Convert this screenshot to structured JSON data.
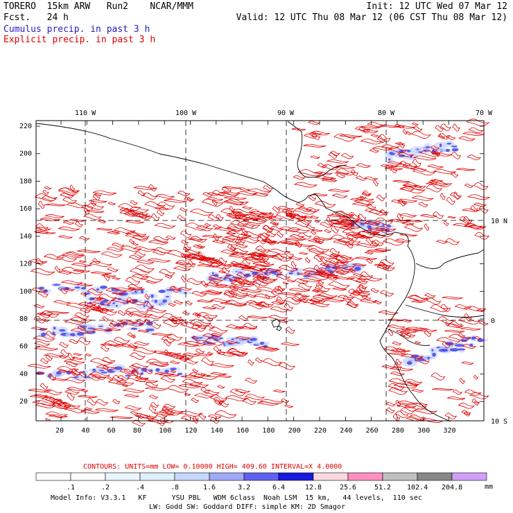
{
  "header": {
    "model": "TORERO  15km ARW   Run2    NCAR/MMM",
    "init": "Init: 12 UTC Wed 07 Mar 12",
    "fcst": "Fcst.   24 h",
    "valid": "Valid: 12 UTC Thu 08 Mar 12 (06 CST Thu 08 Mar 12)",
    "cumulus": "Cumulus precip. in past 3 h",
    "explicit": "Explicit precip. in past 3 h"
  },
  "map": {
    "top_lon_labels": [
      "110 W",
      "100 W",
      "90 W",
      "80 W",
      "70 W"
    ],
    "right_lat_labels": [
      "10 N",
      "0",
      "10 S"
    ],
    "y_ticks": [
      "220",
      "200",
      "180",
      "160",
      "140",
      "120",
      "100",
      "80",
      "60",
      "40",
      "20"
    ],
    "x_ticks": [
      "20",
      "40",
      "60",
      "80",
      "100",
      "120",
      "140",
      "160",
      "180",
      "200",
      "220",
      "240",
      "260",
      "280",
      "300",
      "320"
    ],
    "colors": {
      "explicit": "#e00000",
      "cumulus": "#3030e0",
      "coast": "#000000",
      "grid": "#000000"
    }
  },
  "legend": {
    "contours_text": "CONTOURS:  UNITS=mm  LOW= 0.10000      HIGH=  409.60      INTERVAL=X  4.0000",
    "labels": [
      ".1",
      ".2",
      ".4",
      ".8",
      "1.6",
      "3.2",
      "6.4",
      "12.8",
      "25.6",
      "51.2",
      "102.4",
      "204.8"
    ],
    "units": "mm",
    "colors": [
      "#ffffff",
      "#ffffff",
      "#eaf6ff",
      "#ddf0ff",
      "#c8d8ff",
      "#a0a8f8",
      "#6060f0",
      "#1818e0",
      "#ffd8e0",
      "#ff90c0",
      "#c0c0c0",
      "#888888",
      "#d0a0f8"
    ]
  },
  "footer": {
    "line1": "Model Info: V3.3.1   KF      YSU PBL   WDM 6class  Noah LSM  15 km,   44 levels,  110 sec",
    "line2": "LW: Godd SW: Goddard DIFF: simple KM: 2D Smagor"
  }
}
